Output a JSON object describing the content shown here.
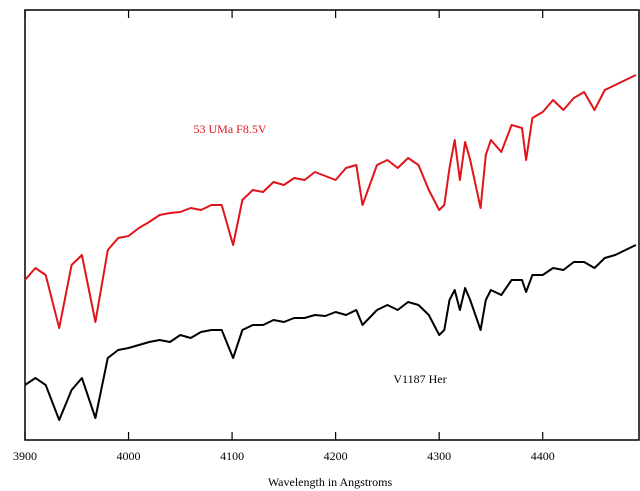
{
  "chart_data": {
    "type": "line",
    "xlabel": "Wavelength in Angstroms",
    "annotations": [
      "53 UMa F8.5V",
      "V1187 Her"
    ],
    "x": [
      3900,
      3910,
      3920,
      3933,
      3945,
      3955,
      3968,
      3980,
      3990,
      4000,
      4010,
      4020,
      4030,
      4040,
      4050,
      4060,
      4070,
      4080,
      4090,
      4101,
      4110,
      4120,
      4130,
      4140,
      4150,
      4160,
      4170,
      4180,
      4190,
      4200,
      4210,
      4220,
      4226,
      4240,
      4250,
      4260,
      4270,
      4280,
      4290,
      4300,
      4305,
      4310,
      4315,
      4320,
      4325,
      4330,
      4340,
      4345,
      4350,
      4360,
      4370,
      4380,
      4384,
      4390,
      4400,
      4410,
      4420,
      4430,
      4440,
      4450,
      4460,
      4470,
      4480,
      4490
    ],
    "series": [
      {
        "color": "#e0151b",
        "values": [
          160,
          172,
          165,
          112,
          175,
          185,
          118,
          190,
          202,
          204,
          212,
          218,
          225,
          227,
          228,
          232,
          230,
          235,
          235,
          195,
          240,
          250,
          248,
          258,
          255,
          262,
          260,
          268,
          264,
          260,
          272,
          275,
          235,
          275,
          280,
          272,
          282,
          275,
          250,
          230,
          235,
          272,
          300,
          260,
          298,
          280,
          232,
          285,
          300,
          288,
          315,
          312,
          280,
          322,
          328,
          340,
          330,
          342,
          348,
          330,
          350,
          355,
          360,
          365
        ]
      },
      {
        "color": "#000000",
        "values": [
          55,
          62,
          55,
          20,
          50,
          62,
          22,
          82,
          90,
          92,
          95,
          98,
          100,
          98,
          105,
          102,
          108,
          110,
          110,
          82,
          110,
          115,
          115,
          120,
          118,
          122,
          122,
          125,
          124,
          128,
          125,
          130,
          115,
          130,
          135,
          130,
          138,
          135,
          125,
          105,
          110,
          140,
          150,
          130,
          152,
          140,
          110,
          140,
          150,
          145,
          160,
          160,
          148,
          165,
          165,
          172,
          170,
          178,
          178,
          172,
          182,
          185,
          190,
          195
        ]
      }
    ],
    "xlim": [
      3900,
      4493
    ],
    "ylim": [
      0,
      430
    ],
    "xticks": [
      3900,
      4000,
      4100,
      4200,
      4300,
      4400
    ]
  }
}
